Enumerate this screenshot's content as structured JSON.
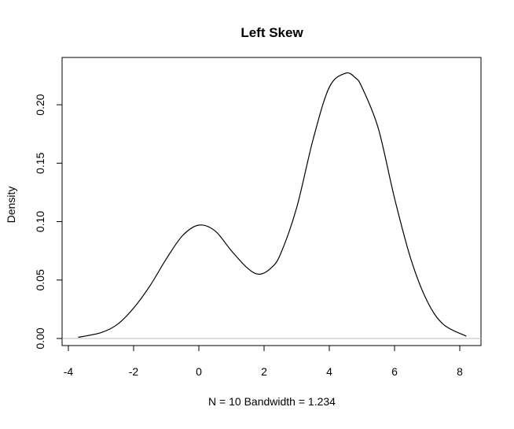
{
  "chart_data": {
    "type": "line",
    "title": "Left Skew",
    "xlabel": "N = 10   Bandwidth = 1.234",
    "ylabel": "Density",
    "xlim": [
      -3.7,
      8.2
    ],
    "ylim": [
      0,
      0.227
    ],
    "xticks": [
      -4,
      -2,
      0,
      2,
      4,
      6,
      8
    ],
    "xtick_labels": [
      "-4",
      "-2",
      "0",
      "2",
      "4",
      "6",
      "8"
    ],
    "yticks": [
      0.0,
      0.05,
      0.1,
      0.15,
      0.2
    ],
    "ytick_labels": [
      "0.00",
      "0.05",
      "0.10",
      "0.15",
      "0.20"
    ],
    "baseline": 0,
    "grid": false,
    "legend": "none",
    "colors": {
      "line": "#000000",
      "baseline": "#bebebe",
      "axis": "#000000"
    },
    "series": [
      {
        "x": [
          -3.7,
          -3.0,
          -2.5,
          -2.0,
          -1.5,
          -1.0,
          -0.5,
          0.0,
          0.5,
          1.0,
          1.5,
          1.85,
          2.2,
          2.5,
          3.0,
          3.5,
          4.0,
          4.5,
          4.8,
          5.0,
          5.5,
          6.0,
          6.5,
          7.0,
          7.5,
          8.2
        ],
        "y": [
          0.001,
          0.005,
          0.012,
          0.026,
          0.045,
          0.068,
          0.088,
          0.097,
          0.092,
          0.075,
          0.06,
          0.055,
          0.06,
          0.072,
          0.112,
          0.17,
          0.215,
          0.227,
          0.223,
          0.215,
          0.18,
          0.12,
          0.068,
          0.032,
          0.012,
          0.002
        ]
      }
    ]
  }
}
